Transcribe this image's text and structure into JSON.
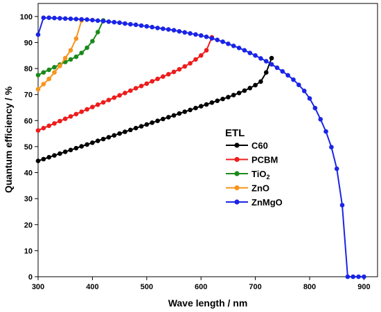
{
  "chart_data": {
    "type": "line",
    "xlabel": "Wave length / nm",
    "ylabel": "Quantum efficiency / %",
    "xlim": [
      300,
      925
    ],
    "ylim": [
      0,
      105
    ],
    "xticks": [
      300,
      400,
      500,
      600,
      700,
      800,
      900
    ],
    "yticks": [
      0,
      10,
      20,
      30,
      40,
      50,
      60,
      70,
      80,
      90,
      100
    ],
    "grid": false,
    "legend": {
      "title": "ETL",
      "placement": "center-right"
    },
    "series": [
      {
        "name": "C60",
        "subscript": "",
        "color": "#000000",
        "x": [
          300,
          310,
          320,
          330,
          340,
          350,
          360,
          370,
          380,
          390,
          400,
          410,
          420,
          430,
          440,
          450,
          460,
          470,
          480,
          490,
          500,
          510,
          520,
          530,
          540,
          550,
          560,
          570,
          580,
          590,
          600,
          610,
          620,
          630,
          640,
          650,
          660,
          670,
          680,
          690,
          700,
          710,
          720,
          730
        ],
        "y": [
          44.5,
          45.2,
          45.9,
          46.6,
          47.3,
          48.0,
          48.7,
          49.4,
          50.1,
          50.8,
          51.5,
          52.2,
          52.9,
          53.6,
          54.3,
          55.0,
          55.7,
          56.4,
          57.1,
          57.8,
          58.5,
          59.2,
          59.9,
          60.6,
          61.3,
          62.0,
          62.7,
          63.4,
          64.1,
          64.8,
          65.5,
          66.2,
          66.9,
          67.6,
          68.3,
          69.0,
          69.8,
          70.6,
          71.5,
          72.5,
          73.6,
          75.0,
          78.5,
          84.0
        ]
      },
      {
        "name": "PCBM",
        "subscript": "",
        "color": "#ee1c1c",
        "x": [
          300,
          310,
          320,
          330,
          340,
          350,
          360,
          370,
          380,
          390,
          400,
          410,
          420,
          430,
          440,
          450,
          460,
          470,
          480,
          490,
          500,
          510,
          520,
          530,
          540,
          550,
          560,
          570,
          580,
          590,
          600,
          610,
          620
        ],
        "y": [
          56.2,
          57.1,
          58.0,
          58.9,
          59.8,
          60.7,
          61.6,
          62.5,
          63.4,
          64.3,
          65.2,
          66.1,
          67.0,
          67.9,
          68.8,
          69.7,
          70.6,
          71.5,
          72.4,
          73.3,
          74.2,
          75.1,
          76.0,
          76.9,
          77.8,
          78.7,
          79.7,
          80.8,
          82.0,
          83.5,
          85.0,
          87.0,
          92.0
        ]
      },
      {
        "name": "TiO",
        "subscript": "2",
        "color": "#1a8a1a",
        "x": [
          300,
          310,
          320,
          330,
          340,
          350,
          360,
          370,
          380,
          390,
          400,
          410,
          420
        ],
        "y": [
          77.5,
          78.5,
          79.5,
          80.5,
          81.5,
          82.5,
          83.5,
          84.5,
          86.0,
          88.0,
          90.5,
          94.0,
          98.5
        ]
      },
      {
        "name": "ZnO",
        "subscript": "",
        "color": "#f7941d",
        "x": [
          300,
          310,
          320,
          330,
          340,
          350,
          360,
          370,
          380
        ],
        "y": [
          72.0,
          74.0,
          76.0,
          78.5,
          81.0,
          84.0,
          87.0,
          91.5,
          98.5
        ]
      },
      {
        "name": "ZnMgO",
        "subscript": "",
        "color": "#1a24e6",
        "x": [
          300,
          310,
          320,
          330,
          340,
          350,
          360,
          370,
          380,
          390,
          400,
          410,
          420,
          430,
          440,
          450,
          460,
          470,
          480,
          490,
          500,
          510,
          520,
          530,
          540,
          550,
          560,
          570,
          580,
          590,
          600,
          610,
          620,
          630,
          640,
          650,
          660,
          670,
          680,
          690,
          700,
          710,
          720,
          730,
          740,
          750,
          760,
          770,
          780,
          790,
          800,
          810,
          820,
          830,
          840,
          850,
          860,
          870,
          880,
          890,
          900
        ],
        "y": [
          93.0,
          99.5,
          99.5,
          99.4,
          99.3,
          99.2,
          99.1,
          99.0,
          98.9,
          98.8,
          98.6,
          98.4,
          98.2,
          98.0,
          97.8,
          97.6,
          97.3,
          97.0,
          96.8,
          96.5,
          96.2,
          95.9,
          95.6,
          95.3,
          95.0,
          94.7,
          94.3,
          93.9,
          93.5,
          93.1,
          92.7,
          92.2,
          91.6,
          91.0,
          90.3,
          89.5,
          88.7,
          87.9,
          87.0,
          86.0,
          85.0,
          83.9,
          82.8,
          81.6,
          80.3,
          78.9,
          77.4,
          75.7,
          73.7,
          71.4,
          68.5,
          64.8,
          60.5,
          55.8,
          49.8,
          41.5,
          27.5,
          0.0,
          0.0,
          0.0,
          0.0
        ]
      }
    ]
  }
}
